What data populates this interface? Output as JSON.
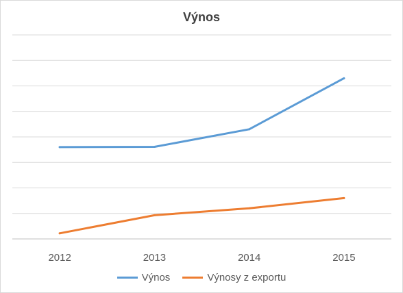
{
  "chart_data": {
    "type": "line",
    "title": "Výnos",
    "xlabel": "",
    "ylabel": "",
    "categories": [
      "2012",
      "2013",
      "2014",
      "2015"
    ],
    "ylim": [
      0,
      8
    ],
    "y_tick_labels_shown": false,
    "grid": "horizontal",
    "legend_position": "bottom",
    "series": [
      {
        "name": "Výnos",
        "color": "#5b9bd5",
        "values": [
          3.6,
          3.61,
          4.3,
          6.3
        ]
      },
      {
        "name": "Výnosy z exportu",
        "color": "#ed7d31",
        "values": [
          0.22,
          0.93,
          1.2,
          1.6
        ]
      }
    ]
  }
}
